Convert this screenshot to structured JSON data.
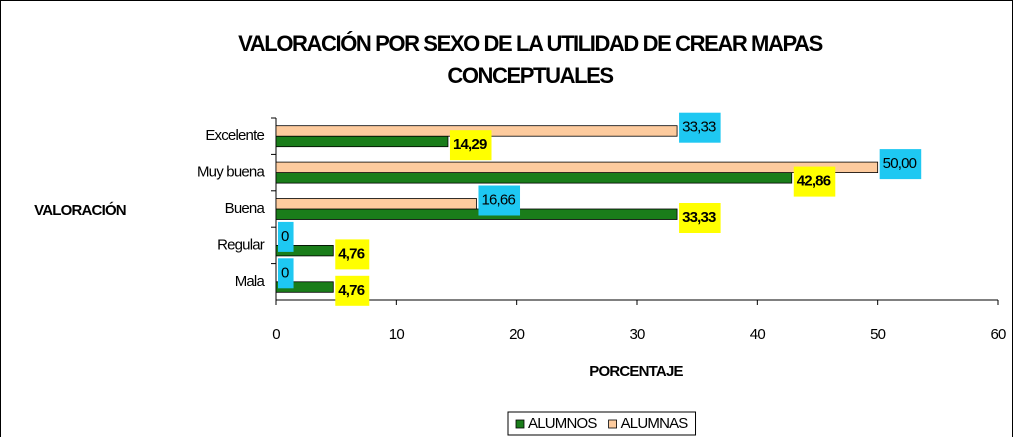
{
  "chart_data": {
    "type": "bar",
    "orientation": "horizontal",
    "title": [
      "VALORACIÓN POR SEXO DE LA UTILIDAD DE CREAR MAPAS",
      "CONCEPTUALES"
    ],
    "xlabel": "PORCENTAJE",
    "ylabel": "VALORACIÓN",
    "categories": [
      "Excelente",
      "Muy buena",
      "Buena",
      "Regular",
      "Mala"
    ],
    "series": [
      {
        "name": "ALUMNOS",
        "color": "#1a7d1a",
        "label_color": "#ffff00",
        "values": [
          14.29,
          42.86,
          33.33,
          4.76,
          4.76
        ],
        "value_labels": [
          "14,29",
          "42,86",
          "33,33",
          "4,76",
          "4,76"
        ]
      },
      {
        "name": "ALUMNAS",
        "color": "#fdcb9e",
        "label_color": "#1ec8f2",
        "values": [
          33.33,
          50.0,
          16.66,
          0,
          0
        ],
        "value_labels": [
          "33,33",
          "50,00",
          "16,66",
          "0",
          "0"
        ]
      }
    ],
    "xlim": [
      0,
      60
    ],
    "xticks": [
      0,
      10,
      20,
      30,
      40,
      50,
      60
    ],
    "legend": "bottom"
  }
}
